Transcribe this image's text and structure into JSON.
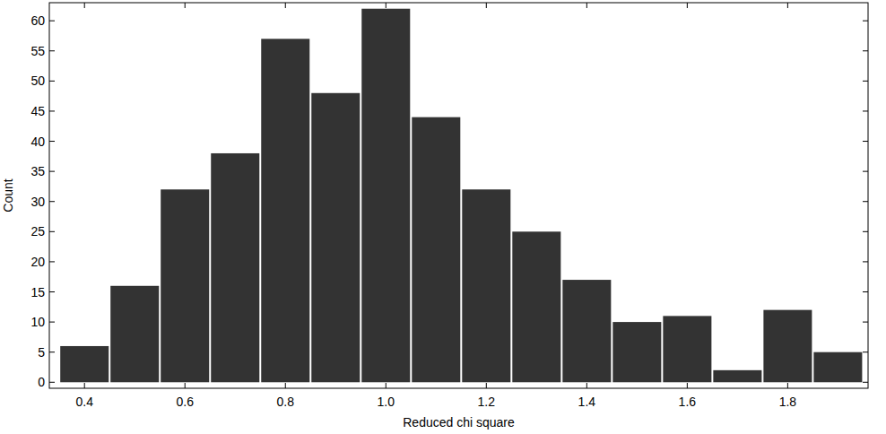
{
  "chart_data": {
    "type": "histogram",
    "x_label": "Reduced chi square",
    "y_label": "Count",
    "bins": [
      0.35,
      0.45,
      0.55,
      0.65,
      0.75,
      0.85,
      0.95,
      1.05,
      1.15,
      1.25,
      1.35,
      1.45,
      1.55,
      1.65,
      1.75,
      1.85,
      1.95
    ],
    "values": [
      6,
      16,
      32,
      38,
      57,
      48,
      62,
      44,
      32,
      25,
      17,
      10,
      11,
      2,
      12,
      5
    ],
    "color": "#333333",
    "xlim": [
      0.33,
      1.96
    ],
    "ylim": [
      -1,
      63
    ],
    "xticks": [
      0.4,
      0.6,
      0.8,
      {
        "value": 1,
        "label": "1.0"
      },
      1.2,
      1.4,
      1.6,
      1.8
    ],
    "yticks": [
      0,
      5,
      10,
      15,
      20,
      25,
      30,
      35,
      40,
      45,
      50,
      55,
      60
    ],
    "grid": false
  }
}
